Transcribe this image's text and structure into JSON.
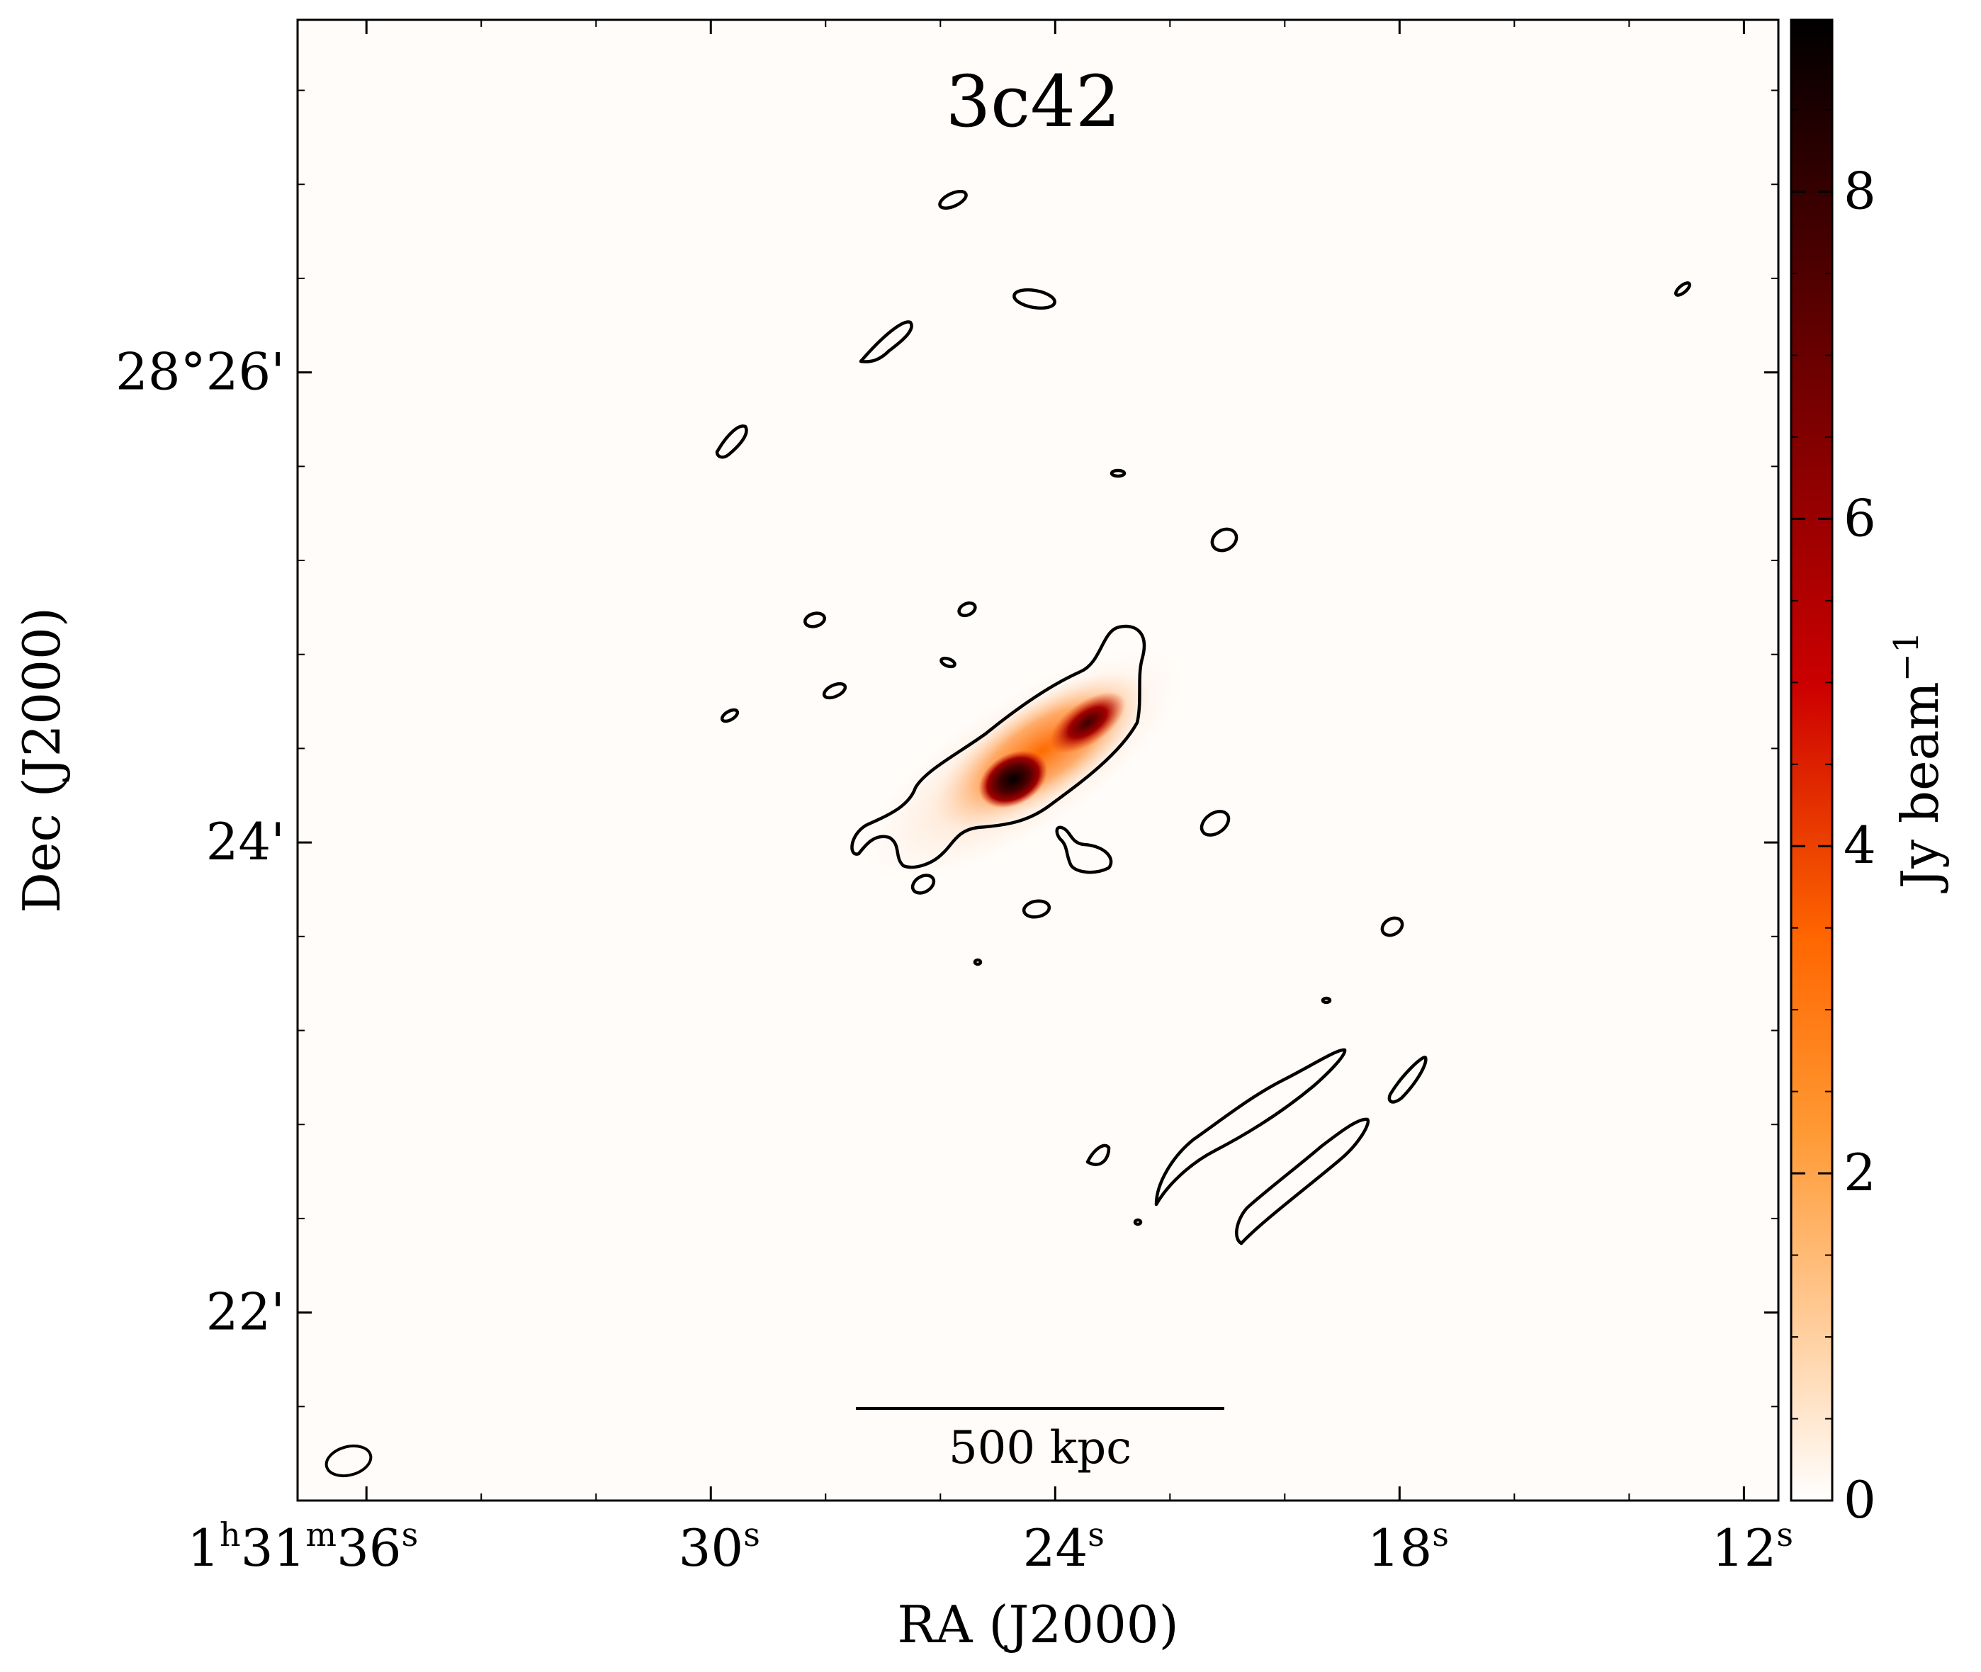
{
  "chart_data": {
    "type": "heatmap",
    "title": "3c42",
    "xlabel": "RA (J2000)",
    "ylabel": "Dec (J2000)",
    "x_ticks": [
      {
        "value_s": 36,
        "h": "1",
        "m": "31",
        "s": "36",
        "full": true
      },
      {
        "value_s": 30,
        "s": "30"
      },
      {
        "value_s": 24,
        "s": "24"
      },
      {
        "value_s": 18,
        "s": "18"
      },
      {
        "value_s": 12,
        "s": "12"
      }
    ],
    "y_ticks": [
      {
        "value_arcmin": 26,
        "label": "28°26'"
      },
      {
        "value_arcmin": 24,
        "label": "24'"
      },
      {
        "value_arcmin": 22,
        "label": "22'"
      }
    ],
    "xlim_s": [
      37.2,
      11.4
    ],
    "ylim_arcmin": [
      21.2,
      27.5
    ],
    "colorbar": {
      "label_main": "Jy beam",
      "label_sup": "−1",
      "ticks": [
        0,
        2,
        4,
        6,
        8
      ],
      "range": [
        0,
        9.05
      ],
      "colormap": "gist_heat_r",
      "stops": [
        "#ffffff",
        "#ffcc99",
        "#ff9933",
        "#ff6600",
        "#cc0000",
        "#660000",
        "#000000"
      ]
    },
    "scalebar_label": "500 kpc",
    "colors": {
      "contour": "#000000",
      "frame": "#000000"
    }
  }
}
